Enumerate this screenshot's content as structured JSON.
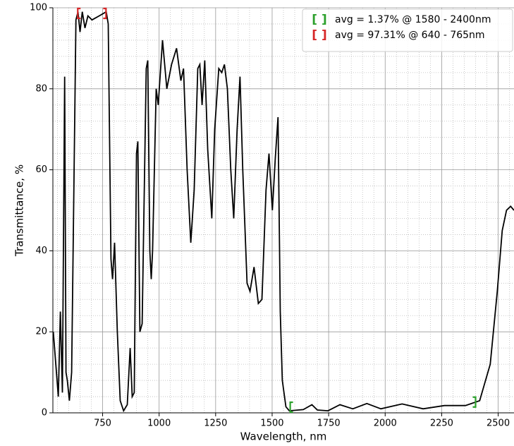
{
  "chart_data": {
    "type": "line",
    "x_label": "Wavelength, nm",
    "y_label": "Transmittance, %",
    "xlim": [
      530,
      2570
    ],
    "ylim": [
      0,
      100
    ],
    "xticks": [
      750,
      1000,
      1250,
      1500,
      1750,
      2000,
      2250,
      2500
    ],
    "yticks": [
      0,
      20,
      40,
      60,
      80,
      100
    ],
    "x_minor_ticks": [
      550,
      600,
      650,
      700,
      800,
      850,
      900,
      950,
      1050,
      1100,
      1150,
      1200,
      1300,
      1350,
      1400,
      1450,
      1550,
      1600,
      1650,
      1700,
      1800,
      1850,
      1900,
      1950,
      2050,
      2100,
      2150,
      2200,
      2300,
      2350,
      2400,
      2450,
      2550
    ],
    "y_minor_ticks": [
      4,
      8,
      12,
      16,
      24,
      28,
      32,
      36,
      44,
      48,
      52,
      56,
      64,
      68,
      72,
      76,
      84,
      88,
      92,
      96
    ],
    "grid": true,
    "legend_position": "upper right",
    "color": "#000000",
    "x": [
      532,
      554,
      563,
      572,
      582,
      588,
      594,
      603,
      613,
      632,
      641,
      650,
      660,
      672,
      685,
      703,
      735,
      766,
      775,
      787,
      794,
      803,
      815,
      828,
      843,
      859,
      872,
      881,
      890,
      900,
      906,
      915,
      925,
      943,
      950,
      959,
      965,
      971,
      987,
      996,
      1015,
      1034,
      1055,
      1077,
      1096,
      1108,
      1124,
      1140,
      1155,
      1171,
      1180,
      1190,
      1202,
      1215,
      1233,
      1246,
      1264,
      1277,
      1289,
      1302,
      1317,
      1330,
      1345,
      1358,
      1370,
      1389,
      1402,
      1420,
      1439,
      1455,
      1473,
      1486,
      1501,
      1514,
      1526,
      1536,
      1545,
      1561,
      1576,
      1638,
      1676,
      1700,
      1747,
      1800,
      1857,
      1919,
      1981,
      2075,
      2168,
      2262,
      2355,
      2418,
      2465,
      2496,
      2518,
      2537,
      2555,
      2570
    ],
    "values": [
      20,
      4,
      25,
      5,
      83,
      10,
      8,
      3,
      10,
      97,
      99,
      94,
      99,
      95,
      98,
      97,
      98,
      99,
      96,
      38,
      33,
      42,
      20,
      3,
      0.5,
      2,
      16,
      4,
      5,
      64,
      67,
      20,
      22,
      85,
      87,
      40,
      33,
      40,
      80,
      76,
      92,
      80,
      86,
      90,
      82,
      85,
      60,
      42,
      55,
      85,
      86,
      76,
      87,
      65,
      48,
      70,
      85,
      84,
      86,
      80,
      60,
      48,
      70,
      83,
      60,
      32,
      30,
      36,
      27,
      28,
      55,
      64,
      50,
      63,
      73,
      25,
      8,
      1.5,
      0.5,
      0.8,
      2,
      0.7,
      0.5,
      2,
      1,
      2.3,
      1,
      2.2,
      1,
      1.8,
      1.8,
      3,
      12,
      30,
      45,
      50,
      51,
      50
    ],
    "regions": [
      {
        "label": "avg = 1.37% @ 1580 - 2400nm",
        "marker": "[ ]",
        "color": "#2ca02c",
        "start": 1580,
        "end": 2400
      },
      {
        "label": "avg = 97.31% @ 640 - 765nm",
        "marker": "[ ]",
        "color": "#d62728",
        "start": 640,
        "end": 765
      }
    ]
  }
}
